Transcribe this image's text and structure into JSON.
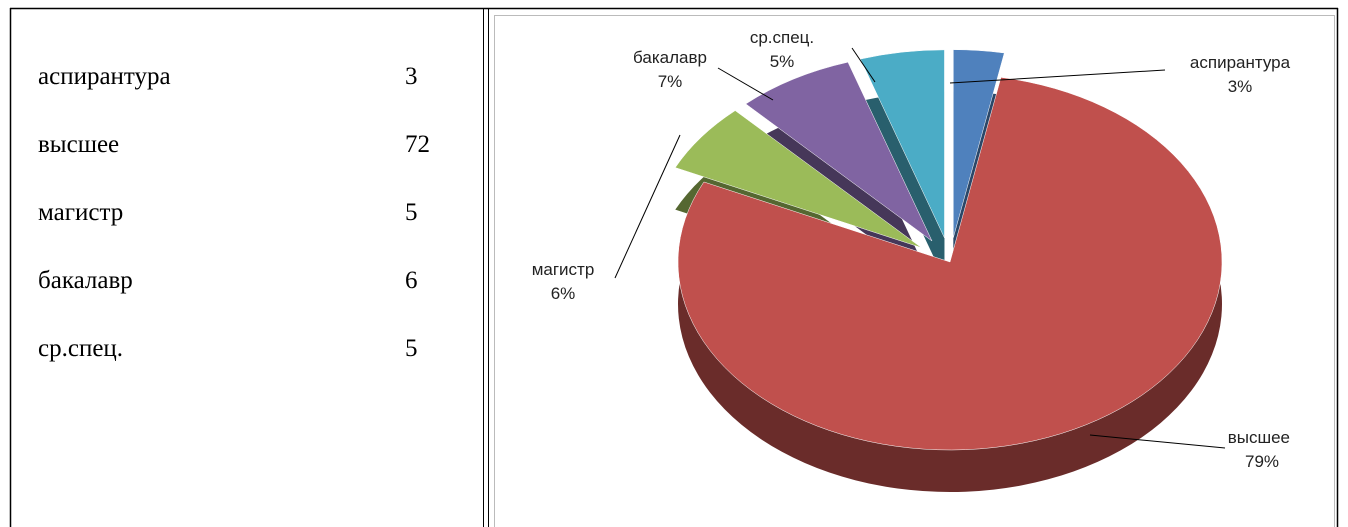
{
  "table": {
    "rows": [
      [
        "аспирантура",
        3
      ],
      [
        "высшее",
        72
      ],
      [
        "магистр",
        5
      ],
      [
        "бакалавр",
        6
      ],
      [
        "ср.спец.",
        5
      ]
    ]
  },
  "chart_data": {
    "type": "pie",
    "categories": [
      "аспирантура",
      "высшее",
      "магистр",
      "бакалавр",
      "ср.спец."
    ],
    "values": [
      3,
      79,
      6,
      7,
      5
    ],
    "value_labels": [
      "3%",
      "79%",
      "6%",
      "7%",
      "5%"
    ],
    "colors": [
      "#4f81bd",
      "#c0504d",
      "#9bbb59",
      "#8064a2",
      "#4bacc6"
    ]
  }
}
